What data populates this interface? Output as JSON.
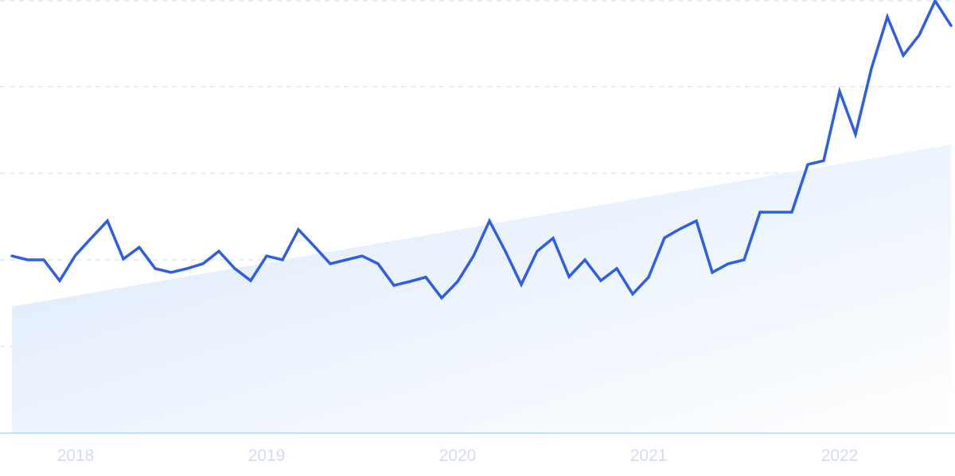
{
  "chart_data": {
    "type": "line",
    "title": "",
    "xlabel": "",
    "ylabel": "",
    "ylim": [
      0,
      100
    ],
    "grid": true,
    "x_tick_labels": [
      "2018",
      "2019",
      "2020",
      "2021",
      "2022"
    ],
    "x_tick_dates": [
      "2018-01",
      "2019-01",
      "2020-01",
      "2021-01",
      "2022-01"
    ],
    "x": [
      "2017-09",
      "2017-10",
      "2017-11",
      "2017-12",
      "2018-01",
      "2018-02",
      "2018-03",
      "2018-04",
      "2018-05",
      "2018-06",
      "2018-07",
      "2018-08",
      "2018-09",
      "2018-10",
      "2018-11",
      "2018-12",
      "2019-01",
      "2019-02",
      "2019-03",
      "2019-04",
      "2019-05",
      "2019-06",
      "2019-07",
      "2019-08",
      "2019-09",
      "2019-10",
      "2019-11",
      "2019-12",
      "2020-01",
      "2020-02",
      "2020-03",
      "2020-04",
      "2020-05",
      "2020-06",
      "2020-07",
      "2020-08",
      "2020-09",
      "2020-10",
      "2020-11",
      "2020-12",
      "2021-01",
      "2021-02",
      "2021-03",
      "2021-04",
      "2021-05",
      "2021-06",
      "2021-07",
      "2021-08",
      "2021-09",
      "2021-10",
      "2021-11",
      "2021-12",
      "2022-01",
      "2022-02",
      "2022-03",
      "2022-04",
      "2022-05",
      "2022-06",
      "2022-07",
      "2022-08"
    ],
    "series": [
      {
        "values": [
          40.9,
          40.0,
          40.0,
          35.2,
          41.1,
          45.1,
          49.0,
          40.2,
          42.9,
          38.0,
          37.1,
          38.0,
          39.1,
          42.0,
          38.0,
          35.2,
          40.9,
          40.0,
          47.0,
          43.1,
          39.1,
          40.0,
          40.9,
          39.1,
          34.1,
          35.0,
          36.0,
          31.2,
          35.0,
          40.9,
          49.0,
          42.0,
          34.3,
          42.0,
          45.0,
          36.1,
          40.0,
          35.2,
          38.0,
          32.1,
          36.0,
          45.1,
          47.2,
          49.0,
          37.1,
          39.1,
          40.0,
          51.0,
          51.0,
          51.0,
          62.0,
          62.9,
          78.9,
          69.0,
          84.2,
          96.1,
          87.2,
          91.9,
          99.8,
          94.1
        ]
      }
    ],
    "trend": {
      "start": 29.2,
      "end": 66.6
    },
    "colors": {
      "line": "#2d5fe0",
      "trend_fill_start": "#dae8fb",
      "trend_fill_end": "#ffffff",
      "grid": "#bfe3f7",
      "axis": "#a9dcf7",
      "tick_label": "#d0dcf5"
    }
  }
}
